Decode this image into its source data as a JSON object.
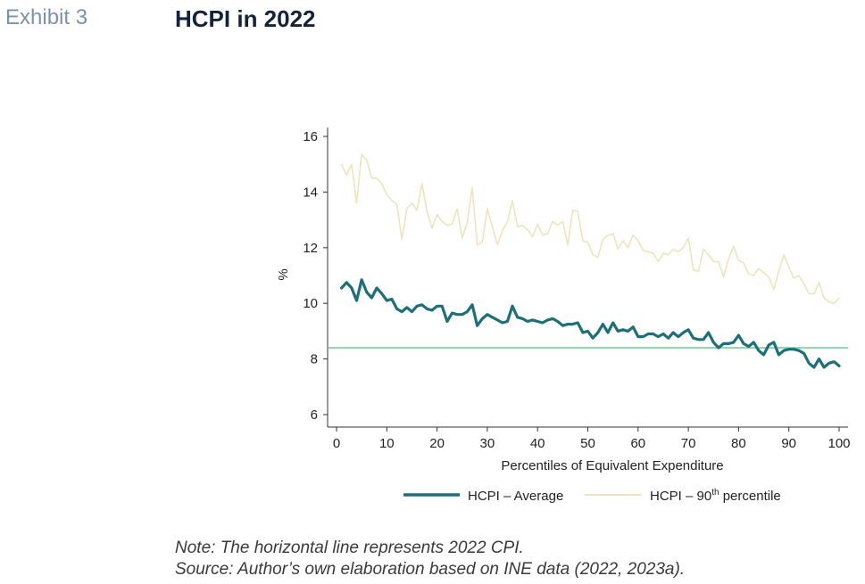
{
  "header": {
    "exhibit": "Exhibit 3",
    "title": "HCPI in 2022"
  },
  "notes": {
    "note": "Note: The horizontal line represents 2022 CPI.",
    "source": "Source: Author’s own elaboration based on INE data (2022, 2023a)."
  },
  "colors": {
    "average": "#1f6f78",
    "p90": "#efe3bd",
    "cpi_line": "#8fd3ad",
    "axis": "#333333"
  },
  "chart_data": {
    "type": "line",
    "xlabel": "Percentiles of Equivalent Expenditure",
    "ylabel": "%",
    "xlim": [
      0,
      100
    ],
    "ylim": [
      6,
      16
    ],
    "xticks": [
      0,
      10,
      20,
      30,
      40,
      50,
      60,
      70,
      80,
      90,
      100
    ],
    "yticks": [
      6,
      8,
      10,
      12,
      14,
      16
    ],
    "grid": false,
    "legend": "bottom",
    "hline": {
      "y": 8.4
    },
    "x": [
      1,
      2,
      3,
      4,
      5,
      6,
      7,
      8,
      9,
      10,
      11,
      12,
      13,
      14,
      15,
      16,
      17,
      18,
      19,
      20,
      21,
      22,
      23,
      24,
      25,
      26,
      27,
      28,
      29,
      30,
      31,
      32,
      33,
      34,
      35,
      36,
      37,
      38,
      39,
      40,
      41,
      42,
      43,
      44,
      45,
      46,
      47,
      48,
      49,
      50,
      51,
      52,
      53,
      54,
      55,
      56,
      57,
      58,
      59,
      60,
      61,
      62,
      63,
      64,
      65,
      66,
      67,
      68,
      69,
      70,
      71,
      72,
      73,
      74,
      75,
      76,
      77,
      78,
      79,
      80,
      81,
      82,
      83,
      84,
      85,
      86,
      87,
      88,
      89,
      90,
      91,
      92,
      93,
      94,
      95,
      96,
      97,
      98,
      99,
      100
    ],
    "series": [
      {
        "name": "HCPI – Average",
        "values": [
          10.55,
          10.75,
          10.55,
          10.1,
          10.85,
          10.4,
          10.2,
          10.55,
          10.35,
          10.1,
          10.15,
          9.8,
          9.7,
          9.85,
          9.7,
          9.9,
          9.95,
          9.8,
          9.75,
          9.9,
          9.9,
          9.35,
          9.65,
          9.6,
          9.6,
          9.7,
          9.95,
          9.2,
          9.45,
          9.6,
          9.5,
          9.4,
          9.3,
          9.35,
          9.9,
          9.5,
          9.45,
          9.35,
          9.4,
          9.35,
          9.3,
          9.4,
          9.45,
          9.35,
          9.2,
          9.25,
          9.25,
          9.3,
          8.95,
          9.0,
          8.75,
          8.95,
          9.25,
          8.95,
          9.3,
          9.0,
          9.05,
          9.0,
          9.15,
          8.8,
          8.8,
          8.9,
          8.9,
          8.8,
          8.9,
          8.75,
          8.95,
          8.8,
          8.95,
          9.05,
          8.75,
          8.7,
          8.7,
          8.95,
          8.6,
          8.4,
          8.55,
          8.55,
          8.6,
          8.85,
          8.55,
          8.45,
          8.6,
          8.3,
          8.15,
          8.5,
          8.6,
          8.15,
          8.3,
          8.35,
          8.35,
          8.3,
          8.2,
          7.85,
          7.7,
          8.0,
          7.7,
          7.85,
          7.9,
          7.75
        ]
      },
      {
        "name": "HCPI – 90th percentile",
        "values": [
          15.0,
          14.6,
          15.0,
          13.6,
          15.35,
          15.15,
          14.5,
          14.5,
          14.3,
          13.9,
          13.7,
          13.55,
          12.3,
          13.4,
          13.6,
          13.35,
          14.3,
          13.3,
          12.7,
          13.2,
          12.95,
          12.8,
          12.85,
          13.4,
          12.35,
          12.9,
          14.15,
          12.1,
          12.2,
          13.4,
          12.75,
          12.1,
          12.6,
          12.95,
          13.7,
          12.75,
          12.8,
          12.65,
          12.4,
          12.85,
          12.45,
          12.5,
          12.95,
          12.8,
          12.95,
          12.1,
          13.35,
          13.3,
          12.25,
          12.2,
          11.75,
          11.65,
          12.3,
          12.45,
          12.5,
          11.95,
          12.25,
          12.0,
          12.45,
          12.25,
          11.9,
          11.85,
          11.8,
          11.5,
          11.8,
          11.75,
          11.95,
          11.85,
          12.0,
          12.35,
          11.2,
          11.15,
          11.95,
          11.75,
          11.5,
          11.5,
          10.95,
          11.6,
          12.05,
          11.55,
          11.45,
          11.05,
          11.0,
          11.25,
          11.1,
          10.95,
          10.5,
          11.15,
          11.75,
          11.3,
          10.9,
          11.0,
          10.7,
          10.35,
          10.35,
          10.75,
          10.2,
          10.05,
          10.0,
          10.2
        ]
      }
    ],
    "legend_items": [
      {
        "label": "HCPI – Average",
        "color": "#1f6f78"
      },
      {
        "label_main": "HCPI – 90",
        "label_sup": "th",
        "label_tail": " percentile",
        "color": "#efe3bd"
      }
    ]
  }
}
